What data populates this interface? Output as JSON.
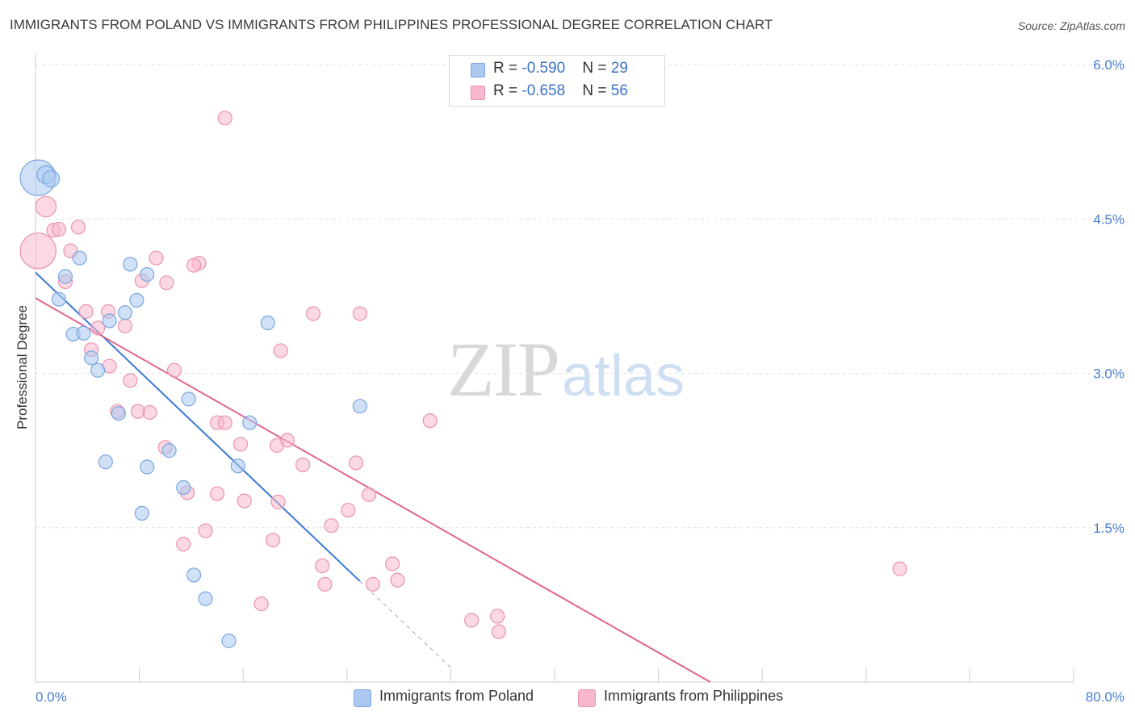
{
  "header": {
    "title": "IMMIGRANTS FROM POLAND VS IMMIGRANTS FROM PHILIPPINES PROFESSIONAL DEGREE CORRELATION CHART",
    "source": "Source: ZipAtlas.com"
  },
  "watermark": {
    "zip": "ZIP",
    "atlas": "atlas"
  },
  "legend": {
    "rows": [
      {
        "r_label": "R = ",
        "r_value": "-0.590",
        "n_label": "N = ",
        "n_value": "29",
        "color": "#aac8f0"
      },
      {
        "r_label": "R = ",
        "r_value": "-0.658",
        "n_label": "N = ",
        "n_value": "56",
        "color": "#f7b8cb"
      }
    ]
  },
  "bottom_legend": [
    {
      "label": "Immigrants from Poland",
      "color": "#aac8f0"
    },
    {
      "label": "Immigrants from Philippines",
      "color": "#f7b8cb"
    }
  ],
  "colors": {
    "poland_fill": "#aac8f0",
    "poland_stroke": "#7aa6e0",
    "poland_line": "#3a78d4",
    "phil_fill": "#f7b8cb",
    "phil_stroke": "#eb93ad",
    "phil_line": "#e0658e",
    "grid": "#e1e1e1",
    "axis": "#cccccc",
    "tick_text": "#4a7bd0"
  },
  "chart_data": {
    "type": "scatter",
    "title": "IMMIGRANTS FROM POLAND VS IMMIGRANTS FROM PHILIPPINES PROFESSIONAL DEGREE CORRELATION CHART",
    "xlabel": "",
    "ylabel": "Professional Degree",
    "xlim": [
      0,
      80
    ],
    "ylim": [
      0,
      6.2
    ],
    "x_tick_labels": [
      "0.0%",
      "80.0%"
    ],
    "y_ticks": [
      {
        "value": 1.5,
        "label": "1.5%"
      },
      {
        "value": 3.0,
        "label": "3.0%"
      },
      {
        "value": 4.5,
        "label": "4.5%"
      },
      {
        "value": 6.0,
        "label": "6.0%"
      }
    ],
    "series": [
      {
        "name": "Immigrants from Poland",
        "R": -0.59,
        "N": 29,
        "points": [
          {
            "x": 0.2,
            "y": 4.9,
            "s": 2.6
          },
          {
            "x": 0.8,
            "y": 4.93,
            "s": 1.3
          },
          {
            "x": 1.2,
            "y": 4.89,
            "s": 1.2
          },
          {
            "x": 3.4,
            "y": 4.12,
            "s": 1
          },
          {
            "x": 2.3,
            "y": 3.94,
            "s": 1
          },
          {
            "x": 1.8,
            "y": 3.72,
            "s": 1
          },
          {
            "x": 7.3,
            "y": 4.06,
            "s": 1
          },
          {
            "x": 8.6,
            "y": 3.96,
            "s": 1
          },
          {
            "x": 7.8,
            "y": 3.71,
            "s": 1
          },
          {
            "x": 6.9,
            "y": 3.59,
            "s": 1
          },
          {
            "x": 5.7,
            "y": 3.51,
            "s": 1
          },
          {
            "x": 2.9,
            "y": 3.38,
            "s": 1
          },
          {
            "x": 3.7,
            "y": 3.39,
            "s": 1
          },
          {
            "x": 4.3,
            "y": 3.15,
            "s": 1
          },
          {
            "x": 4.8,
            "y": 3.03,
            "s": 1
          },
          {
            "x": 17.9,
            "y": 3.49,
            "s": 1
          },
          {
            "x": 11.8,
            "y": 2.75,
            "s": 1
          },
          {
            "x": 6.4,
            "y": 2.61,
            "s": 1
          },
          {
            "x": 16.5,
            "y": 2.52,
            "s": 1
          },
          {
            "x": 25.0,
            "y": 2.68,
            "s": 1
          },
          {
            "x": 10.3,
            "y": 2.25,
            "s": 1
          },
          {
            "x": 5.4,
            "y": 2.14,
            "s": 1
          },
          {
            "x": 8.6,
            "y": 2.09,
            "s": 1
          },
          {
            "x": 15.6,
            "y": 2.1,
            "s": 1
          },
          {
            "x": 11.4,
            "y": 1.89,
            "s": 1
          },
          {
            "x": 8.2,
            "y": 1.64,
            "s": 1
          },
          {
            "x": 12.2,
            "y": 1.04,
            "s": 1
          },
          {
            "x": 13.1,
            "y": 0.81,
            "s": 1
          },
          {
            "x": 14.9,
            "y": 0.4,
            "s": 1
          }
        ],
        "trend": {
          "x0": 0,
          "y0": 3.98,
          "x1": 25.0,
          "y1": 0.98,
          "dash_to_x": 32.0
        }
      },
      {
        "name": "Immigrants from Philippines",
        "R": -0.658,
        "N": 56,
        "points": [
          {
            "x": 0.2,
            "y": 4.19,
            "s": 2.6
          },
          {
            "x": 0.8,
            "y": 4.62,
            "s": 1.5
          },
          {
            "x": 14.6,
            "y": 5.48,
            "s": 1
          },
          {
            "x": 1.4,
            "y": 4.39,
            "s": 1
          },
          {
            "x": 1.8,
            "y": 4.4,
            "s": 1
          },
          {
            "x": 3.3,
            "y": 4.42,
            "s": 1
          },
          {
            "x": 2.7,
            "y": 4.19,
            "s": 1
          },
          {
            "x": 2.3,
            "y": 3.89,
            "s": 1
          },
          {
            "x": 9.3,
            "y": 4.12,
            "s": 1
          },
          {
            "x": 12.6,
            "y": 4.07,
            "s": 1
          },
          {
            "x": 12.2,
            "y": 4.05,
            "s": 1
          },
          {
            "x": 8.2,
            "y": 3.9,
            "s": 1
          },
          {
            "x": 10.1,
            "y": 3.88,
            "s": 1
          },
          {
            "x": 5.6,
            "y": 3.6,
            "s": 1
          },
          {
            "x": 3.9,
            "y": 3.6,
            "s": 1
          },
          {
            "x": 4.8,
            "y": 3.44,
            "s": 1
          },
          {
            "x": 6.9,
            "y": 3.46,
            "s": 1
          },
          {
            "x": 21.4,
            "y": 3.58,
            "s": 1
          },
          {
            "x": 25.0,
            "y": 3.58,
            "s": 1
          },
          {
            "x": 4.3,
            "y": 3.23,
            "s": 1
          },
          {
            "x": 5.7,
            "y": 3.07,
            "s": 1
          },
          {
            "x": 18.9,
            "y": 3.22,
            "s": 1
          },
          {
            "x": 10.7,
            "y": 3.03,
            "s": 1
          },
          {
            "x": 7.3,
            "y": 2.93,
            "s": 1
          },
          {
            "x": 6.3,
            "y": 2.63,
            "s": 1
          },
          {
            "x": 7.9,
            "y": 2.63,
            "s": 1
          },
          {
            "x": 8.8,
            "y": 2.62,
            "s": 1
          },
          {
            "x": 14.0,
            "y": 2.52,
            "s": 1
          },
          {
            "x": 14.6,
            "y": 2.52,
            "s": 1
          },
          {
            "x": 30.4,
            "y": 2.54,
            "s": 1
          },
          {
            "x": 10.0,
            "y": 2.28,
            "s": 1
          },
          {
            "x": 15.8,
            "y": 2.31,
            "s": 1
          },
          {
            "x": 19.4,
            "y": 2.35,
            "s": 1
          },
          {
            "x": 18.6,
            "y": 2.3,
            "s": 1
          },
          {
            "x": 24.7,
            "y": 2.13,
            "s": 1
          },
          {
            "x": 20.6,
            "y": 2.11,
            "s": 1
          },
          {
            "x": 11.7,
            "y": 1.84,
            "s": 1
          },
          {
            "x": 14.0,
            "y": 1.83,
            "s": 1
          },
          {
            "x": 16.1,
            "y": 1.76,
            "s": 1
          },
          {
            "x": 18.7,
            "y": 1.75,
            "s": 1
          },
          {
            "x": 25.7,
            "y": 1.82,
            "s": 1
          },
          {
            "x": 24.1,
            "y": 1.67,
            "s": 1
          },
          {
            "x": 22.8,
            "y": 1.52,
            "s": 1
          },
          {
            "x": 13.1,
            "y": 1.47,
            "s": 1
          },
          {
            "x": 18.3,
            "y": 1.38,
            "s": 1
          },
          {
            "x": 11.4,
            "y": 1.34,
            "s": 1
          },
          {
            "x": 22.1,
            "y": 1.13,
            "s": 1
          },
          {
            "x": 27.5,
            "y": 1.15,
            "s": 1
          },
          {
            "x": 22.3,
            "y": 0.95,
            "s": 1
          },
          {
            "x": 26.0,
            "y": 0.95,
            "s": 1
          },
          {
            "x": 27.9,
            "y": 0.99,
            "s": 1
          },
          {
            "x": 17.4,
            "y": 0.76,
            "s": 1
          },
          {
            "x": 33.6,
            "y": 0.6,
            "s": 1
          },
          {
            "x": 35.6,
            "y": 0.64,
            "s": 1
          },
          {
            "x": 35.7,
            "y": 0.49,
            "s": 1
          },
          {
            "x": 66.6,
            "y": 1.1,
            "s": 1
          }
        ],
        "trend": {
          "x0": 0,
          "y0": 3.73,
          "x1": 52.0,
          "y1": 0.0
        }
      }
    ]
  }
}
